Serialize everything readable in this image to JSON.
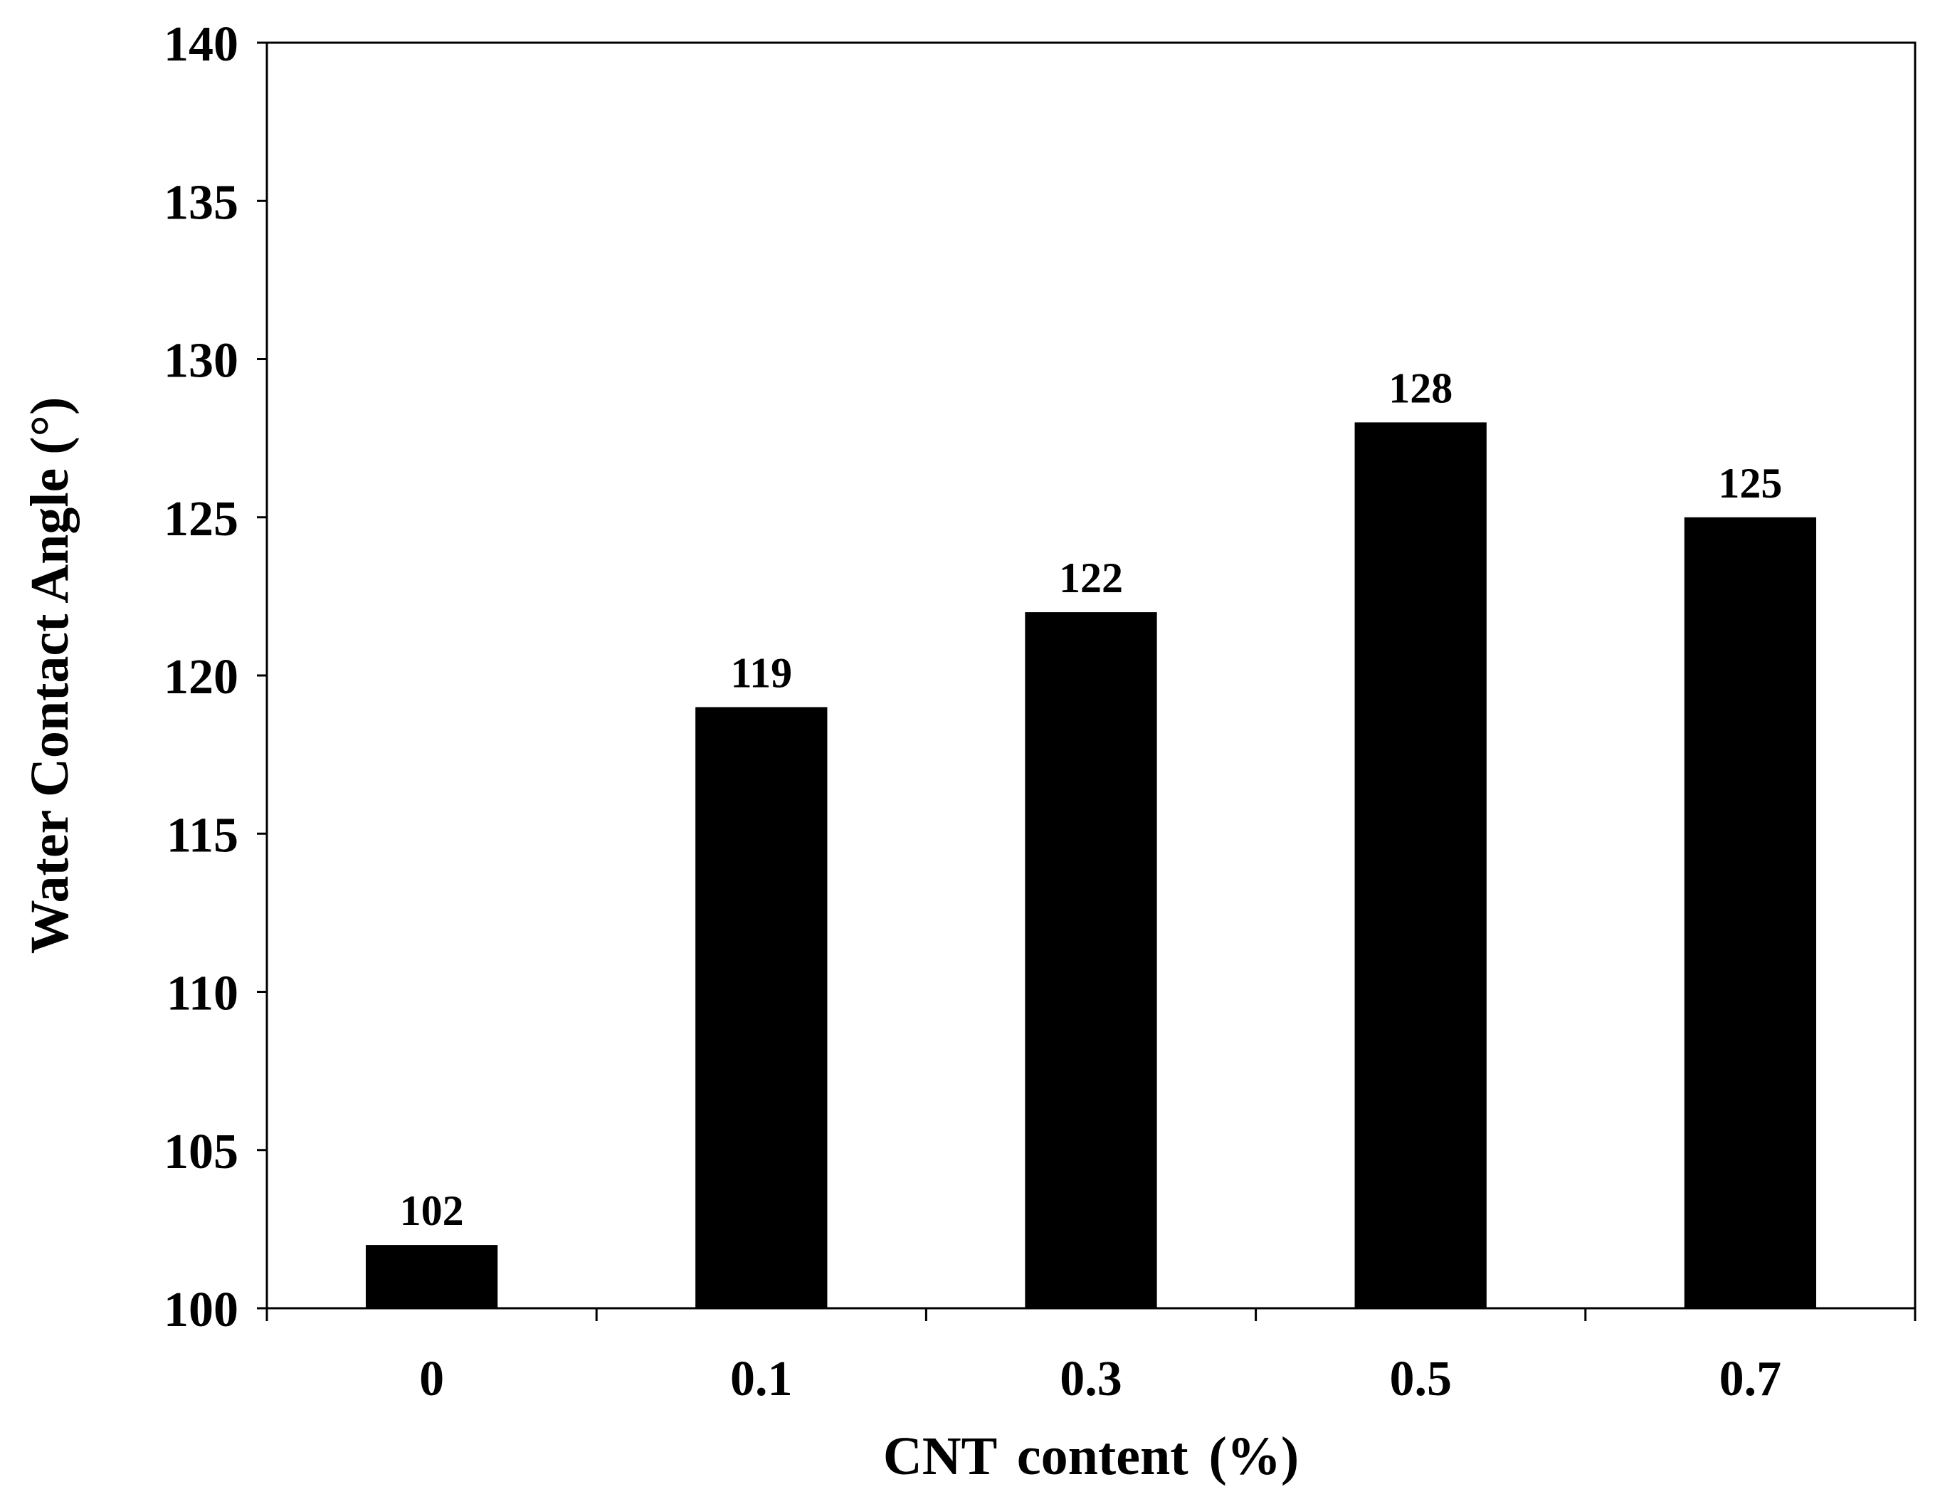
{
  "chart_data": {
    "type": "bar",
    "title": "",
    "xlabel": "CNT content (%)",
    "ylabel": "Water Contact Angle (°)",
    "categories": [
      "0",
      "0.1",
      "0.3",
      "0.5",
      "0.7"
    ],
    "values": [
      102,
      119,
      122,
      128,
      125
    ],
    "data_labels": [
      "102",
      "119",
      "122",
      "128",
      "125"
    ],
    "ylim": [
      100,
      140
    ],
    "yticks": [
      100,
      105,
      110,
      115,
      120,
      125,
      130,
      135,
      140
    ],
    "grid": false,
    "legend": "none",
    "bar_color": "#000000"
  }
}
